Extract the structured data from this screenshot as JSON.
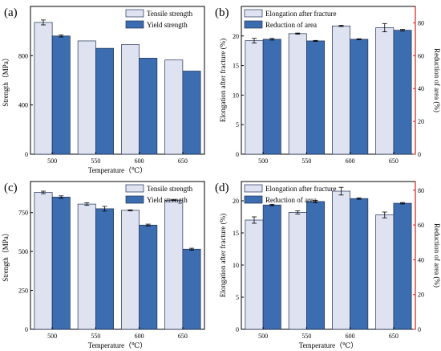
{
  "figure": {
    "colors": {
      "tensile": "#dfe3f1",
      "yield": "#3c6db0",
      "elongation": "#dfe3f1",
      "reduction": "#3c6db0",
      "right_axis": "#d32020",
      "edge": "#1f2f55",
      "axis": "#000000"
    }
  },
  "chart_data": [
    {
      "id": "a",
      "panel_label": "(a)",
      "type": "bar",
      "categories": [
        "500",
        "550",
        "600",
        "650"
      ],
      "series": [
        {
          "name": "Tensile strength",
          "values": [
            1070,
            920,
            890,
            765
          ],
          "errors": [
            20,
            0,
            0,
            0
          ]
        },
        {
          "name": "Yield strength",
          "values": [
            960,
            860,
            780,
            675
          ],
          "errors": [
            8,
            0,
            0,
            0
          ]
        }
      ],
      "xlabel": "Temperature（℃）",
      "ylabel": "Strength（MPa）",
      "ylim": [
        0,
        1200
      ],
      "yticks": [
        0,
        400,
        800
      ],
      "legend": "top-right"
    },
    {
      "id": "b",
      "panel_label": "(b)",
      "type": "bar",
      "categories": [
        "500",
        "550",
        "600",
        "650"
      ],
      "series": [
        {
          "name": "Elongation after fracture",
          "axis": "left",
          "values": [
            19.2,
            20.4,
            21.7,
            21.4
          ],
          "errors": [
            0.4,
            0.1,
            0.1,
            0.7
          ]
        },
        {
          "name": "Reduction of area",
          "axis": "right",
          "values": [
            70,
            69,
            70,
            75.5
          ],
          "errors": [
            0.5,
            0.3,
            0.3,
            0.5
          ]
        }
      ],
      "xlabel": "",
      "ylabel_left": "Elongation after fracture (%)",
      "ylabel_right": "Reduction of area (%)",
      "ylim_left": [
        0,
        25
      ],
      "ylim_right": [
        0,
        90
      ],
      "yticks_left": [
        0,
        5,
        10,
        15,
        20
      ],
      "yticks_right": [
        0,
        20,
        40,
        60,
        80
      ],
      "legend": "top-left"
    },
    {
      "id": "c",
      "panel_label": "(c)",
      "type": "bar",
      "categories": [
        "500",
        "550",
        "600",
        "650"
      ],
      "series": [
        {
          "name": "Tensile strength",
          "values": [
            880,
            805,
            765,
            830
          ],
          "errors": [
            8,
            8,
            3,
            3
          ]
        },
        {
          "name": "Yield strength",
          "values": [
            850,
            775,
            670,
            515
          ],
          "errors": [
            8,
            15,
            6,
            6
          ]
        }
      ],
      "xlabel": "Temperature（℃）",
      "ylabel": "Strength（MPa）",
      "ylim": [
        0,
        950
      ],
      "yticks": [
        0,
        250,
        500,
        750
      ],
      "legend": "top-right"
    },
    {
      "id": "d",
      "panel_label": "(d)",
      "type": "bar",
      "categories": [
        "500",
        "550",
        "600",
        "650"
      ],
      "series": [
        {
          "name": "Elongation after fracture",
          "axis": "left",
          "values": [
            17,
            18.2,
            21.5,
            17.8
          ],
          "errors": [
            0.5,
            0.25,
            0.6,
            0.45
          ]
        },
        {
          "name": "Reduction of area",
          "axis": "right",
          "values": [
            71.5,
            73.5,
            75.2,
            72.5
          ],
          "errors": [
            0.4,
            0.6,
            0.4,
            0.4
          ]
        }
      ],
      "xlabel": "Temperature（℃）",
      "ylabel_left": "Elongation after fracture (%)",
      "ylabel_right": "Reduction of area (%)",
      "ylim_left": [
        0,
        23
      ],
      "ylim_right": [
        0,
        85
      ],
      "yticks_left": [
        0,
        5,
        10,
        15,
        20
      ],
      "yticks_right": [
        0,
        20,
        40,
        60,
        80
      ],
      "legend": "top-left"
    }
  ]
}
